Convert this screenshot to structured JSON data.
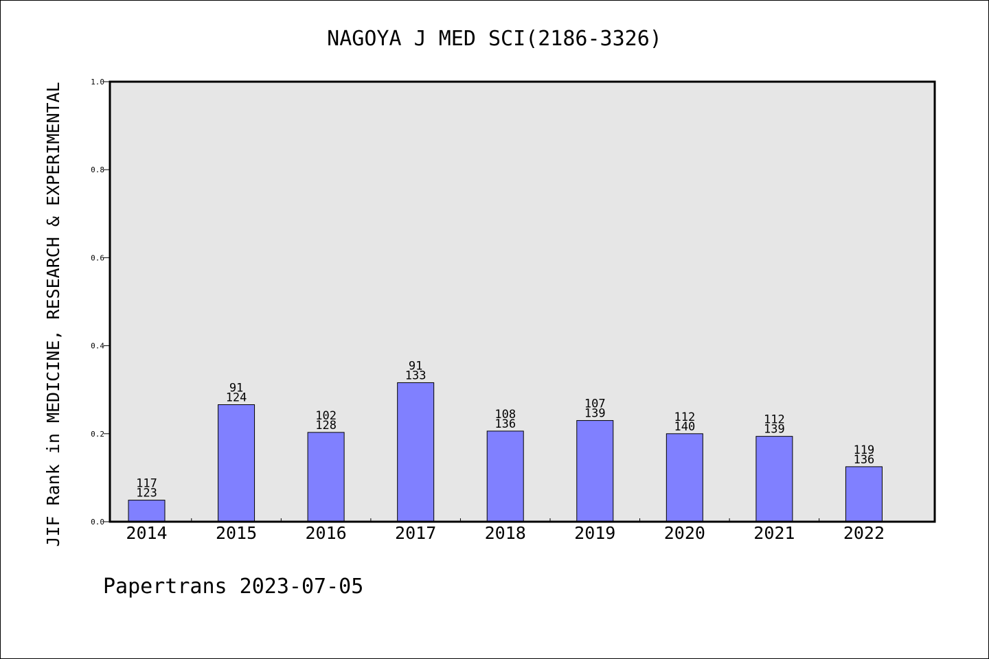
{
  "chart_data": {
    "type": "bar",
    "title": "NAGOYA J MED SCI(2186-3326)",
    "ylabel": "JIF Rank in MEDICINE, RESEARCH & EXPERIMENTAL",
    "xlabel": "",
    "categories": [
      "2014",
      "2015",
      "2016",
      "2017",
      "2018",
      "2019",
      "2020",
      "2021",
      "2022"
    ],
    "values": [
      0.049,
      0.266,
      0.203,
      0.316,
      0.206,
      0.23,
      0.2,
      0.194,
      0.125
    ],
    "ranks": [
      "117",
      "91",
      "102",
      "91",
      "108",
      "107",
      "112",
      "112",
      "119"
    ],
    "totals": [
      "123",
      "124",
      "128",
      "133",
      "136",
      "139",
      "140",
      "139",
      "136"
    ],
    "ylim": [
      0,
      1.0
    ],
    "yticks": [
      "0.0",
      "0.2",
      "0.4",
      "0.6",
      "0.8",
      "1.0"
    ],
    "grid": false,
    "colors": {
      "bar_fill": "#8080ff",
      "bar_stroke": "#000000",
      "plot_background": "#e6e6e6",
      "axes_stroke": "#000000"
    }
  },
  "footer": "Papertrans 2023-07-05"
}
